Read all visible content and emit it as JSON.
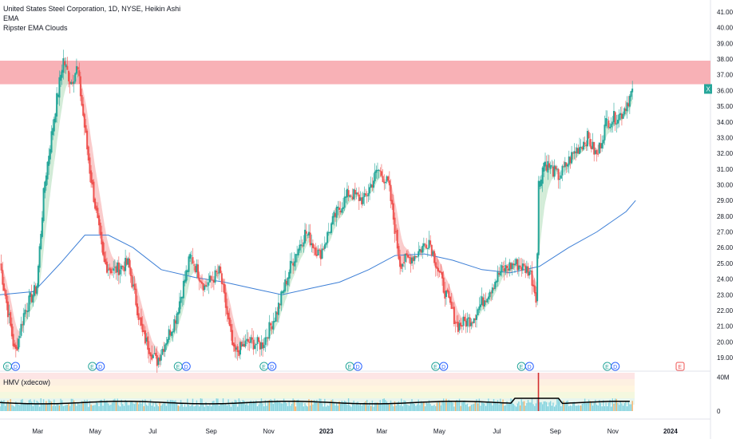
{
  "legend": {
    "title": "United States Steel Corporation, 1D, NYSE, Heikin Ashi",
    "ema": "EMA",
    "clouds": "Ripster EMA Clouds"
  },
  "hmv_label": "HMV (xdecow)",
  "price_marker": "X",
  "colors": {
    "up": "#26a69a",
    "down": "#ef5350",
    "ema_line": "#3d7fd6",
    "resistance_zone": "#f7a9ae",
    "cloud_up": "#c9e8cf",
    "cloud_down": "#f9c0c0",
    "volume": "#86d4de",
    "volume_avg": "#000000"
  },
  "events": {
    "ed_letter": "E",
    "d_letter": "D",
    "markers": [
      "Jan 2022",
      "Apr 2022",
      "Jul 2022",
      "Oct 2022",
      "Jan 2023",
      "Apr 2023",
      "Jul 2023",
      "Oct 2023"
    ],
    "next_earnings": "E"
  },
  "chart_data": {
    "type": "candlestick",
    "title": "United States Steel Corporation, 1D, NYSE, Heikin Ashi",
    "y_axis": {
      "ticks": [
        "19.00",
        "20.00",
        "21.00",
        "22.00",
        "23.00",
        "24.00",
        "25.00",
        "26.00",
        "27.00",
        "28.00",
        "29.00",
        "30.00",
        "31.00",
        "32.00",
        "33.00",
        "34.00",
        "35.00",
        "36.00",
        "37.00",
        "38.00",
        "39.00",
        "40.00",
        "41.00"
      ],
      "range": [
        18.5,
        41
      ]
    },
    "x_axis": {
      "ticks": [
        "Mar",
        "May",
        "Jul",
        "Sep",
        "Nov",
        "2023",
        "Mar",
        "May",
        "Jul",
        "Sep",
        "Nov",
        "2024"
      ]
    },
    "price_path": [
      {
        "date": "2022-01-20",
        "close": 25.0
      },
      {
        "date": "2022-02-05",
        "close": 19.2
      },
      {
        "date": "2022-02-15",
        "close": 22.0
      },
      {
        "date": "2022-02-28",
        "close": 23.5
      },
      {
        "date": "2022-03-08",
        "close": 30.0
      },
      {
        "date": "2022-03-20",
        "close": 35.0
      },
      {
        "date": "2022-03-28",
        "close": 38.0
      },
      {
        "date": "2022-04-05",
        "close": 36.5
      },
      {
        "date": "2022-04-12",
        "close": 37.5
      },
      {
        "date": "2022-04-25",
        "close": 31.0
      },
      {
        "date": "2022-05-10",
        "close": 25.0
      },
      {
        "date": "2022-05-20",
        "close": 24.5
      },
      {
        "date": "2022-06-05",
        "close": 25.0
      },
      {
        "date": "2022-06-20",
        "close": 20.5
      },
      {
        "date": "2022-07-05",
        "close": 18.7
      },
      {
        "date": "2022-07-25",
        "close": 21.5
      },
      {
        "date": "2022-08-10",
        "close": 25.5
      },
      {
        "date": "2022-08-25",
        "close": 23.5
      },
      {
        "date": "2022-09-10",
        "close": 24.5
      },
      {
        "date": "2022-09-25",
        "close": 19.2
      },
      {
        "date": "2022-10-10",
        "close": 20.0
      },
      {
        "date": "2022-10-25",
        "close": 19.8
      },
      {
        "date": "2022-11-10",
        "close": 22.0
      },
      {
        "date": "2022-11-25",
        "close": 25.0
      },
      {
        "date": "2022-12-10",
        "close": 27.0
      },
      {
        "date": "2022-12-25",
        "close": 25.5
      },
      {
        "date": "2023-01-10",
        "close": 28.0
      },
      {
        "date": "2023-01-25",
        "close": 29.5
      },
      {
        "date": "2023-02-10",
        "close": 29.0
      },
      {
        "date": "2023-02-25",
        "close": 31.0
      },
      {
        "date": "2023-03-08",
        "close": 30.0
      },
      {
        "date": "2023-03-20",
        "close": 25.0
      },
      {
        "date": "2023-04-05",
        "close": 25.5
      },
      {
        "date": "2023-04-20",
        "close": 26.5
      },
      {
        "date": "2023-05-05",
        "close": 23.5
      },
      {
        "date": "2023-05-20",
        "close": 21.0
      },
      {
        "date": "2023-06-05",
        "close": 21.5
      },
      {
        "date": "2023-06-20",
        "close": 23.0
      },
      {
        "date": "2023-07-05",
        "close": 24.5
      },
      {
        "date": "2023-07-20",
        "close": 25.0
      },
      {
        "date": "2023-08-05",
        "close": 24.5
      },
      {
        "date": "2023-08-12",
        "close": 22.8
      },
      {
        "date": "2023-08-14",
        "close": 30.0
      },
      {
        "date": "2023-08-20",
        "close": 31.5
      },
      {
        "date": "2023-09-05",
        "close": 30.5
      },
      {
        "date": "2023-09-20",
        "close": 32.0
      },
      {
        "date": "2023-10-05",
        "close": 33.0
      },
      {
        "date": "2023-10-15",
        "close": 31.8
      },
      {
        "date": "2023-10-25",
        "close": 34.0
      },
      {
        "date": "2023-11-10",
        "close": 34.5
      },
      {
        "date": "2023-11-22",
        "close": 36.0
      }
    ],
    "ema_path": [
      {
        "date": "2022-01-20",
        "value": 23.0
      },
      {
        "date": "2022-02-25",
        "value": 23.2
      },
      {
        "date": "2022-03-25",
        "value": 25.0
      },
      {
        "date": "2022-04-20",
        "value": 26.8
      },
      {
        "date": "2022-05-15",
        "value": 26.8
      },
      {
        "date": "2022-06-10",
        "value": 26.0
      },
      {
        "date": "2022-07-10",
        "value": 24.6
      },
      {
        "date": "2022-08-15",
        "value": 24.1
      },
      {
        "date": "2022-09-15",
        "value": 23.8
      },
      {
        "date": "2022-10-15",
        "value": 23.4
      },
      {
        "date": "2022-11-15",
        "value": 23.0
      },
      {
        "date": "2022-12-15",
        "value": 23.4
      },
      {
        "date": "2023-01-15",
        "value": 23.8
      },
      {
        "date": "2023-02-15",
        "value": 24.6
      },
      {
        "date": "2023-03-15",
        "value": 25.5
      },
      {
        "date": "2023-04-15",
        "value": 25.6
      },
      {
        "date": "2023-05-15",
        "value": 25.2
      },
      {
        "date": "2023-06-15",
        "value": 24.6
      },
      {
        "date": "2023-07-15",
        "value": 24.4
      },
      {
        "date": "2023-08-15",
        "value": 24.8
      },
      {
        "date": "2023-09-15",
        "value": 26.0
      },
      {
        "date": "2023-10-15",
        "value": 27.0
      },
      {
        "date": "2023-11-15",
        "value": 28.3
      },
      {
        "date": "2023-11-25",
        "value": 29.0
      }
    ],
    "resistance_zone": [
      36.4,
      37.9
    ],
    "last_price": 36.1,
    "volume_axis": [
      "40M",
      "0"
    ],
    "volume_spike": {
      "date": "2023-08-14",
      "approx": "≈45M"
    }
  }
}
